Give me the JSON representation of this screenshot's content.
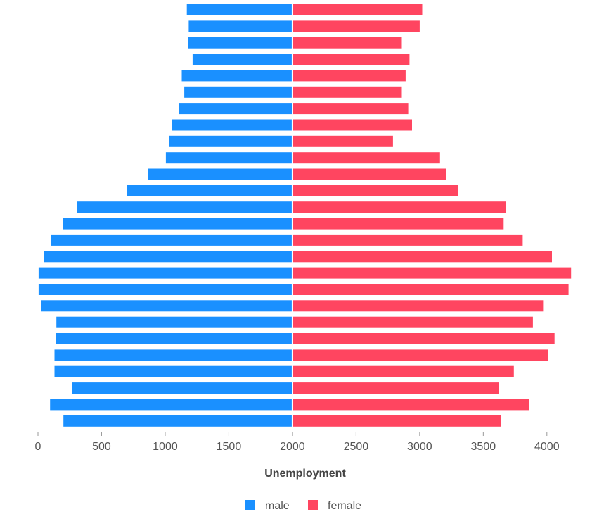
{
  "chart_data": {
    "type": "bar",
    "orientation": "horizontal",
    "xlabel": "Unemployment",
    "xlim": [
      0,
      4200
    ],
    "base": 2000,
    "xticks": [
      0,
      500,
      1000,
      1500,
      2000,
      2500,
      3000,
      3500,
      4000
    ],
    "legend_position": "bottom",
    "series": [
      {
        "name": "male",
        "color": "#1a90ff",
        "values": [
          1170,
          1185,
          1180,
          1215,
          1130,
          1150,
          1105,
          1055,
          1030,
          1005,
          865,
          700,
          305,
          195,
          105,
          45,
          5,
          5,
          25,
          145,
          140,
          130,
          130,
          265,
          95,
          200
        ]
      },
      {
        "name": "female",
        "color": "#ff4560",
        "values": [
          3020,
          3000,
          2860,
          2920,
          2890,
          2860,
          2910,
          2940,
          2790,
          3160,
          3210,
          3300,
          3680,
          3660,
          3810,
          4040,
          4190,
          4170,
          3970,
          3890,
          4060,
          4010,
          3740,
          3620,
          3860,
          3640
        ]
      }
    ]
  }
}
